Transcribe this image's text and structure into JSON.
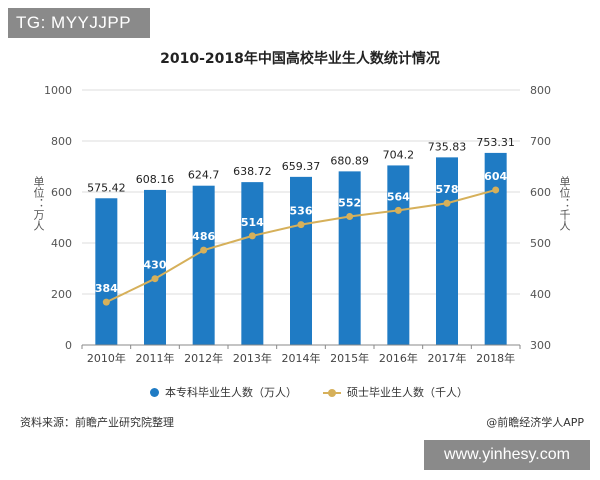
{
  "overlay_tag": "TG: MYYJJPP",
  "watermark_text": "www.yinhesy.com",
  "source_text": "资料来源：前瞻产业研究院整理",
  "credit_text": "@前瞻经济学人APP",
  "colors": {
    "bar": "#1f7bc4",
    "line": "#d6b05a"
  },
  "chart_data": {
    "type": "bar+line",
    "title": "2010-2018年中国高校毕业生人数统计情况",
    "categories": [
      "2010年",
      "2011年",
      "2012年",
      "2013年",
      "2014年",
      "2015年",
      "2016年",
      "2017年",
      "2018年"
    ],
    "series": [
      {
        "name": "本专科毕业生人数（万人）",
        "type": "bar",
        "axis": "left",
        "values": [
          575.42,
          608.16,
          624.7,
          638.72,
          659.37,
          680.89,
          704.2,
          735.83,
          753.31
        ]
      },
      {
        "name": "硕士毕业生人数（千人）",
        "type": "line",
        "axis": "right",
        "values": [
          384,
          430,
          486,
          514,
          536,
          552,
          564,
          578,
          604
        ]
      }
    ],
    "left_axis": {
      "label": "单位：万人",
      "ylim": [
        0,
        1000
      ],
      "ticks": [
        "0",
        "200",
        "400",
        "600",
        "800",
        "1000"
      ]
    },
    "right_axis": {
      "label": "单位：千人",
      "ylim": [
        300,
        800
      ],
      "ticks": [
        "300",
        "400",
        "500",
        "600",
        "700",
        "800"
      ]
    },
    "grid": true,
    "legend_position": "bottom"
  }
}
